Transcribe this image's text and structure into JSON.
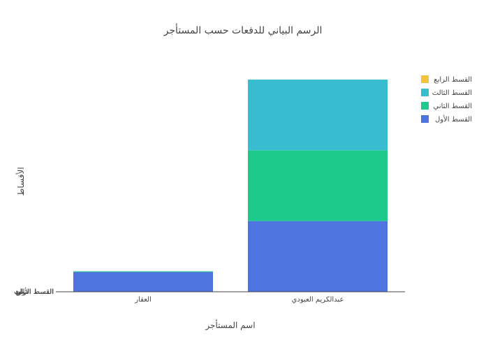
{
  "chart_data": {
    "type": "bar",
    "stacked": true,
    "title": "الرسم البياني للدفعات حسب المستأجر",
    "xlabel": "اسم المستأجر",
    "ylabel": "الأقساط",
    "categories": [
      "العقار",
      "عبدالكريم العبودي"
    ],
    "y_tick_labels": [
      "القسط الأول",
      "القسط الثاني",
      "القسط الثالث",
      "القسط الرابع"
    ],
    "series": [
      {
        "name": "القسط الأول",
        "color": "#4e74e0",
        "values": [
          28,
          100
        ]
      },
      {
        "name": "القسط الثاني",
        "color": "#1ec98c",
        "values": [
          1,
          100
        ]
      },
      {
        "name": "القسط الثالث",
        "color": "#38bcd0",
        "values": [
          0,
          100
        ]
      },
      {
        "name": "القسط الرابع",
        "color": "#f5c33b",
        "values": [
          0,
          0
        ]
      }
    ],
    "legend_order": [
      "القسط الرابع",
      "القسط الثالث",
      "القسط الثاني",
      "القسط الأول"
    ],
    "ylim": [
      0,
      300
    ],
    "grid": false,
    "legend_position": "top-right"
  }
}
